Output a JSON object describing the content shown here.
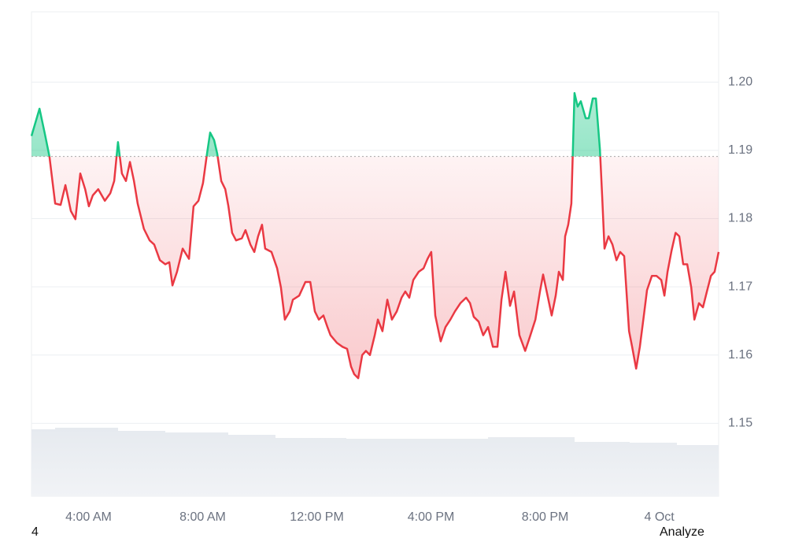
{
  "chart_data": {
    "type": "line",
    "x": [
      2.0,
      2.28,
      2.47,
      2.63,
      2.83,
      3.02,
      3.19,
      3.38,
      3.54,
      3.71,
      3.88,
      4.01,
      4.15,
      4.34,
      4.57,
      4.76,
      4.9,
      5.03,
      5.17,
      5.31,
      5.45,
      5.59,
      5.72,
      5.94,
      6.14,
      6.3,
      6.5,
      6.69,
      6.83,
      6.94,
      7.1,
      7.3,
      7.52,
      7.68,
      7.85,
      8.01,
      8.15,
      8.26,
      8.4,
      8.51,
      8.65,
      8.79,
      8.9,
      9.03,
      9.17,
      9.37,
      9.5,
      9.67,
      9.81,
      9.94,
      10.08,
      10.19,
      10.41,
      10.61,
      10.74,
      10.88,
      11.05,
      11.16,
      11.38,
      11.6,
      11.77,
      11.93,
      12.07,
      12.23,
      12.37,
      12.48,
      12.7,
      12.9,
      13.06,
      13.2,
      13.31,
      13.45,
      13.59,
      13.72,
      13.86,
      14.03,
      14.14,
      14.3,
      14.47,
      14.63,
      14.8,
      14.97,
      15.1,
      15.24,
      15.38,
      15.57,
      15.74,
      15.88,
      16.01,
      16.15,
      16.34,
      16.51,
      16.68,
      16.84,
      17.03,
      17.23,
      17.37,
      17.5,
      17.67,
      17.83,
      18.0,
      18.17,
      18.33,
      18.47,
      18.61,
      18.77,
      18.91,
      19.1,
      19.3,
      19.46,
      19.66,
      19.82,
      19.93,
      20.1,
      20.23,
      20.37,
      20.48,
      20.62,
      20.7,
      20.81,
      20.92,
      21.03,
      21.14,
      21.25,
      21.42,
      21.53,
      21.67,
      21.78,
      21.92,
      22.0,
      22.08,
      22.22,
      22.36,
      22.5,
      22.63,
      22.77,
      22.94,
      23.05,
      23.19,
      23.32,
      23.46,
      23.57,
      23.74,
      23.9,
      24.07,
      24.18,
      24.29,
      24.43,
      24.57,
      24.7,
      24.84,
      24.98,
      25.12,
      25.23,
      25.39,
      25.53,
      25.67,
      25.81,
      25.94,
      26.08
    ],
    "values": [
      1.1921,
      1.1961,
      1.1924,
      1.1891,
      1.1822,
      1.182,
      1.1849,
      1.1811,
      1.1799,
      1.1866,
      1.1843,
      1.1818,
      1.1834,
      1.1843,
      1.1826,
      1.1837,
      1.1855,
      1.1912,
      1.1866,
      1.1855,
      1.1883,
      1.1855,
      1.1822,
      1.1785,
      1.1768,
      1.1762,
      1.1739,
      1.1733,
      1.1736,
      1.1702,
      1.1722,
      1.1756,
      1.1741,
      1.1818,
      1.1826,
      1.1852,
      1.1895,
      1.1926,
      1.1915,
      1.1895,
      1.1855,
      1.1843,
      1.1818,
      1.1779,
      1.1768,
      1.1771,
      1.1783,
      1.1762,
      1.1751,
      1.1774,
      1.1791,
      1.1756,
      1.1751,
      1.1727,
      1.1699,
      1.1652,
      1.1664,
      1.1681,
      1.1687,
      1.1707,
      1.1707,
      1.1664,
      1.1652,
      1.1658,
      1.1641,
      1.1629,
      1.1618,
      1.1612,
      1.1609,
      1.1583,
      1.1572,
      1.1566,
      1.16,
      1.1606,
      1.16,
      1.1629,
      1.1652,
      1.1635,
      1.1681,
      1.1652,
      1.1664,
      1.1684,
      1.1693,
      1.1684,
      1.171,
      1.1722,
      1.1727,
      1.1741,
      1.1751,
      1.1658,
      1.162,
      1.1641,
      1.1652,
      1.1664,
      1.1676,
      1.1684,
      1.1676,
      1.1656,
      1.1649,
      1.1629,
      1.1641,
      1.1612,
      1.1612,
      1.1681,
      1.1722,
      1.1672,
      1.1693,
      1.1629,
      1.1606,
      1.1626,
      1.1652,
      1.1693,
      1.1718,
      1.1684,
      1.1658,
      1.1687,
      1.1722,
      1.171,
      1.1774,
      1.1791,
      1.1822,
      1.1984,
      1.1964,
      1.1972,
      1.1947,
      1.1947,
      1.1976,
      1.1976,
      1.1901,
      1.1831,
      1.1756,
      1.1774,
      1.1762,
      1.1739,
      1.1751,
      1.1745,
      1.1635,
      1.1612,
      1.158,
      1.1612,
      1.1658,
      1.1695,
      1.1716,
      1.1716,
      1.171,
      1.1687,
      1.1722,
      1.1753,
      1.1779,
      1.1774,
      1.1733,
      1.1733,
      1.1699,
      1.1652,
      1.1676,
      1.167,
      1.1693,
      1.1716,
      1.1722,
      1.1751
    ],
    "baseline": 1.1891,
    "color_above": "#16c784",
    "color_below": "#ea3943",
    "xlim": [
      2,
      26.08
    ],
    "xticks": [
      {
        "value": 4,
        "label": "4:00 AM"
      },
      {
        "value": 8,
        "label": "8:00 AM"
      },
      {
        "value": 12,
        "label": "12:00 PM"
      },
      {
        "value": 16,
        "label": "4:00 PM"
      },
      {
        "value": 20,
        "label": "8:00 PM"
      },
      {
        "value": 24,
        "label": "4 Oct"
      }
    ],
    "ylim": [
      1.1393,
      1.2103
    ],
    "yticks": [
      1.15,
      1.16,
      1.17,
      1.18,
      1.19,
      {
        "value": 1.2,
        "label": "1.20"
      }
    ],
    "grid": true
  },
  "footer": {
    "left": "4",
    "right": "Analyze"
  }
}
